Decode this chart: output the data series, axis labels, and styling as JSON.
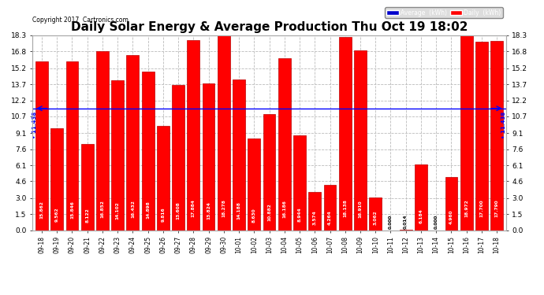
{
  "title": "Daily Solar Energy & Average Production Thu Oct 19 18:02",
  "copyright": "Copyright 2017  Cartronics.com",
  "categories": [
    "09-18",
    "09-19",
    "09-20",
    "09-21",
    "09-22",
    "09-23",
    "09-24",
    "09-25",
    "09-26",
    "09-27",
    "09-28",
    "09-29",
    "09-30",
    "10-01",
    "10-02",
    "10-03",
    "10-04",
    "10-05",
    "10-06",
    "10-07",
    "10-08",
    "10-09",
    "10-10",
    "10-11",
    "10-12",
    "10-13",
    "10-14",
    "10-15",
    "10-16",
    "10-17",
    "10-18"
  ],
  "values": [
    15.862,
    9.562,
    15.846,
    8.122,
    16.852,
    14.102,
    16.432,
    14.898,
    9.816,
    13.608,
    17.884,
    13.824,
    18.278,
    14.188,
    8.63,
    10.882,
    16.186,
    8.944,
    3.574,
    4.264,
    18.138,
    16.91,
    3.062,
    0.0,
    0.014,
    6.184,
    0.0,
    4.96,
    18.972,
    17.7,
    17.79
  ],
  "bar_color": "#ff0000",
  "bar_edge_color": "#bb0000",
  "average_value": 11.438,
  "average_color": "#0000ff",
  "ylim": [
    0,
    18.3
  ],
  "yticks": [
    0.0,
    1.5,
    3.0,
    4.6,
    6.1,
    7.6,
    9.1,
    10.7,
    12.2,
    13.7,
    15.2,
    16.8,
    18.3
  ],
  "background_color": "#ffffff",
  "grid_color": "#bbbbbb",
  "title_fontsize": 11,
  "legend_labels": [
    "Average  (kWh)",
    "Daily  (kWh)"
  ],
  "legend_bg_colors": [
    "#0000cc",
    "#ff0000"
  ],
  "value_label_color": "#ffffff",
  "value_label_outside_color": "#000000"
}
